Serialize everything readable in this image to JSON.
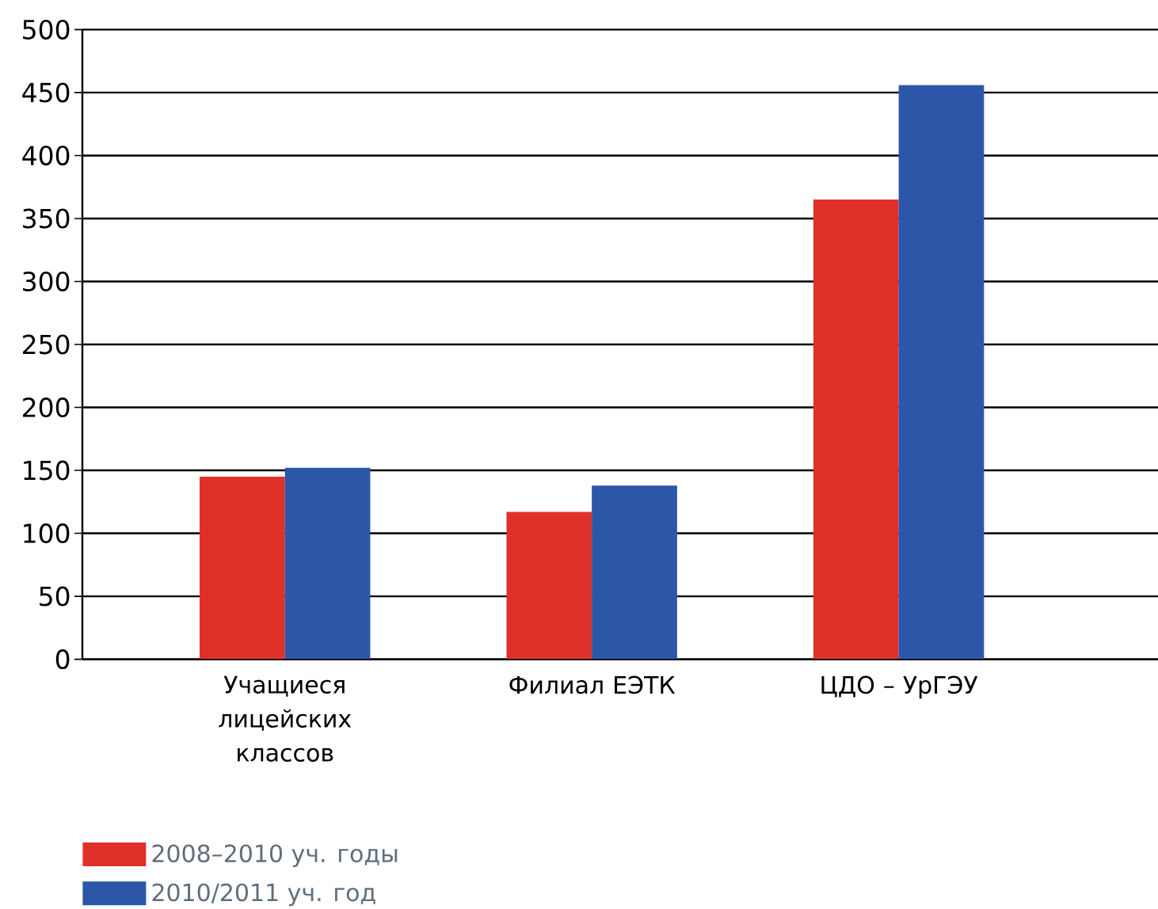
{
  "chart_data": {
    "type": "bar",
    "categories": [
      "Учащиеся лицейских классов",
      "Филиал ЕЭТК",
      "ЦДО – УрГЭУ"
    ],
    "series": [
      {
        "name": "2008–2010 уч. годы",
        "color": "#e0302a",
        "values": [
          145,
          117,
          365
        ]
      },
      {
        "name": "2010/2011 уч. год",
        "color": "#2c57a8",
        "values": [
          152,
          138,
          456
        ]
      }
    ],
    "ylim": [
      0,
      500
    ],
    "yticks": [
      0,
      50,
      100,
      150,
      200,
      250,
      300,
      350,
      400,
      450,
      500
    ],
    "grid": "y",
    "legend": "bottom left"
  }
}
